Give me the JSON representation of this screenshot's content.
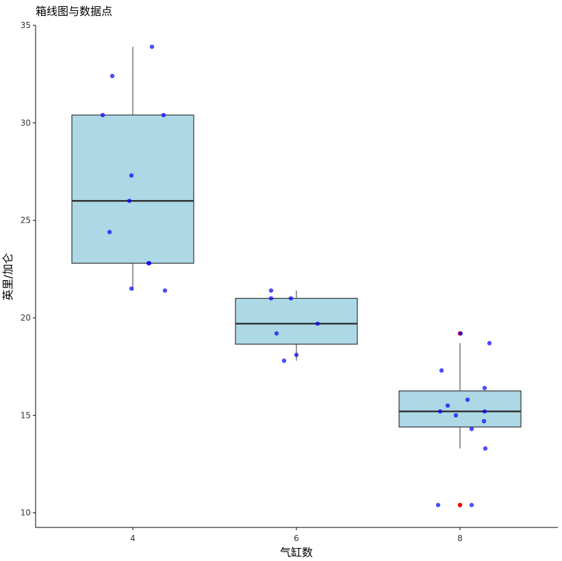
{
  "chart_data": {
    "type": "boxplot",
    "title": "箱线图与数据点",
    "xlabel": "气缸数",
    "ylabel": "英里/加仑",
    "categories": [
      "4",
      "6",
      "8"
    ],
    "ylim": [
      9.25,
      35
    ],
    "yticks": [
      10,
      15,
      20,
      25,
      30,
      35
    ],
    "grid": false,
    "box_fill": "#ADD8E6",
    "box_stroke": "#333333",
    "point_color": "#0000FF",
    "outlier_color": "#FF0000",
    "boxes": [
      {
        "category": "4",
        "min": 21.4,
        "q1": 22.8,
        "median": 26.0,
        "q3": 30.4,
        "max": 33.9,
        "outliers": []
      },
      {
        "category": "6",
        "min": 17.8,
        "q1": 18.65,
        "median": 19.7,
        "q3": 21.0,
        "max": 21.4,
        "outliers": []
      },
      {
        "category": "8",
        "min": 13.3,
        "q1": 14.4,
        "median": 15.2,
        "q3": 16.25,
        "max": 18.7,
        "outliers": [
          10.4,
          10.4,
          19.2
        ]
      }
    ],
    "points": [
      {
        "category": "4",
        "values": [
          22.8,
          24.4,
          22.8,
          32.4,
          30.4,
          33.9,
          21.5,
          27.3,
          26.0,
          30.4,
          21.4
        ]
      },
      {
        "category": "6",
        "values": [
          21.0,
          21.0,
          21.4,
          18.1,
          19.2,
          17.8,
          19.7
        ]
      },
      {
        "category": "8",
        "values": [
          18.7,
          14.3,
          16.4,
          17.3,
          15.2,
          10.4,
          10.4,
          14.7,
          15.5,
          15.2,
          13.3,
          19.2,
          15.8,
          15.0
        ]
      }
    ]
  }
}
